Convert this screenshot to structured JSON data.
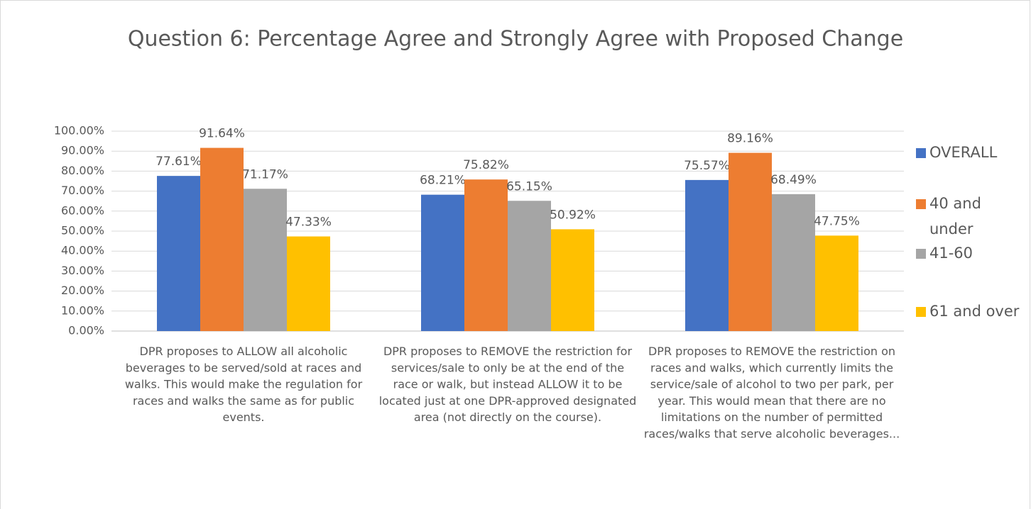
{
  "chart_data": {
    "type": "bar",
    "title": "Question 6: Percentage Agree and Strongly Agree with Proposed Change",
    "categories": [
      "DPR proposes to ALLOW all alcoholic beverages to be served/sold at races and walks. This would make the regulation for races and walks the same as for public events.",
      "DPR proposes to REMOVE the restriction for services/sale to only be at the end of the race or walk,  but instead  ALLOW it to be located just at one DPR-approved designated area (not directly on the course).",
      "DPR proposes to REMOVE the restriction on races and walks, which currently limits the service/sale of alcohol to two per park, per year. This would mean that there are no limitations on the number of permitted races/walks that serve alcoholic beverages..."
    ],
    "series": [
      {
        "name": "OVERALL",
        "color": "#4472c4",
        "values": [
          77.61,
          68.21,
          75.57
        ],
        "value_labels": [
          "77.61%",
          "68.21%",
          "75.57%"
        ]
      },
      {
        "name": "40 and under",
        "color": "#ed7d31",
        "values": [
          91.64,
          75.82,
          89.16
        ],
        "value_labels": [
          "91.64%",
          "75.82%",
          "89.16%"
        ]
      },
      {
        "name": "41-60",
        "color": "#a5a5a5",
        "values": [
          71.17,
          65.15,
          68.49
        ],
        "value_labels": [
          "71.17%",
          "65.15%",
          "68.49%"
        ]
      },
      {
        "name": "61 and over",
        "color": "#ffc000",
        "values": [
          47.33,
          50.92,
          47.75
        ],
        "value_labels": [
          "47.33%",
          "50.92%",
          "47.75%"
        ]
      }
    ],
    "ylim": [
      0,
      100
    ],
    "yticks": [
      {
        "value": 0,
        "label": "0.00%"
      },
      {
        "value": 10,
        "label": "10.00%"
      },
      {
        "value": 20,
        "label": "20.00%"
      },
      {
        "value": 30,
        "label": "30.00%"
      },
      {
        "value": 40,
        "label": "40.00%"
      },
      {
        "value": 50,
        "label": "50.00%"
      },
      {
        "value": 60,
        "label": "60.00%"
      },
      {
        "value": 70,
        "label": "70.00%"
      },
      {
        "value": 80,
        "label": "80.00%"
      },
      {
        "value": 90,
        "label": "90.00%"
      },
      {
        "value": 100,
        "label": "100.00%"
      }
    ],
    "grid": true,
    "legend": "right"
  }
}
